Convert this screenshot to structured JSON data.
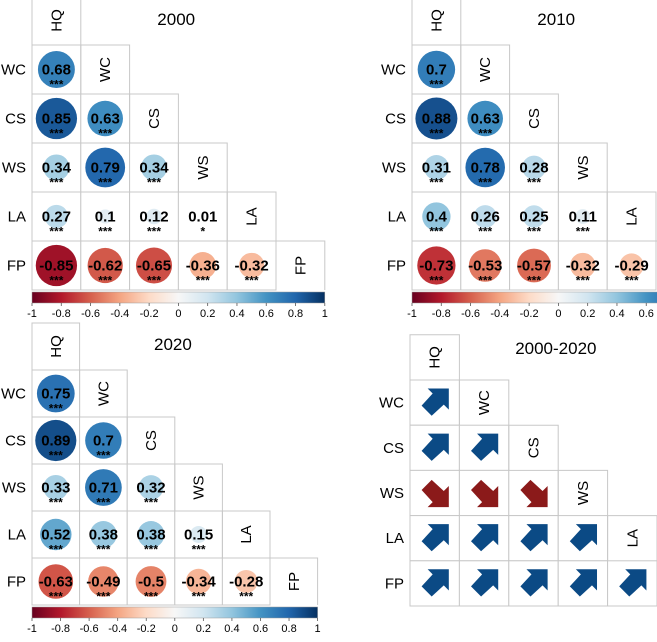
{
  "variables": [
    "HQ",
    "WC",
    "CS",
    "WS",
    "LA",
    "FP"
  ],
  "colorbar_ticks": [
    "-1",
    "-0.8",
    "-0.6",
    "-0.4",
    "-0.2",
    "0",
    "0.2",
    "0.4",
    "0.6",
    "0.8",
    "1"
  ],
  "colors": {
    "negative": "#67001f",
    "neutral": "#f7f7f7",
    "positive": "#053061",
    "arrow_up": "#0b4a85",
    "arrow_down": "#8b1a1a",
    "grid": "#c8c8c8"
  },
  "chart_data": [
    {
      "type": "heatmap",
      "title": "2000",
      "variables": [
        "HQ",
        "WC",
        "CS",
        "WS",
        "LA",
        "FP"
      ],
      "matrix": [
        {
          "row": "WC",
          "values": [
            0.68
          ],
          "labels": [
            "0.68"
          ],
          "sig": [
            "***"
          ]
        },
        {
          "row": "CS",
          "values": [
            0.85,
            0.63
          ],
          "labels": [
            "0.85",
            "0.63"
          ],
          "sig": [
            "***",
            "***"
          ]
        },
        {
          "row": "WS",
          "values": [
            0.34,
            0.79,
            0.34
          ],
          "labels": [
            "0.34",
            "0.79",
            "0.34"
          ],
          "sig": [
            "***",
            "***",
            "***"
          ]
        },
        {
          "row": "LA",
          "values": [
            0.27,
            0.1,
            0.12,
            0.01
          ],
          "labels": [
            "0.27",
            "0.1",
            "0.12",
            "0.01"
          ],
          "sig": [
            "***",
            "***",
            "***",
            "*"
          ]
        },
        {
          "row": "FP",
          "values": [
            -0.85,
            -0.62,
            -0.65,
            -0.36,
            -0.32
          ],
          "labels": [
            "-0.85",
            "-0.62",
            "-0.65",
            "-0.36",
            "-0.32"
          ],
          "sig": [
            "***",
            "***",
            "***",
            "***",
            "***"
          ]
        }
      ],
      "colorbar": {
        "min": -1,
        "max": 1
      }
    },
    {
      "type": "heatmap",
      "title": "2010",
      "variables": [
        "HQ",
        "WC",
        "CS",
        "WS",
        "LA",
        "FP"
      ],
      "matrix": [
        {
          "row": "WC",
          "values": [
            0.7
          ],
          "labels": [
            "0.7"
          ],
          "sig": [
            "***"
          ]
        },
        {
          "row": "CS",
          "values": [
            0.88,
            0.63
          ],
          "labels": [
            "0.88",
            "0.63"
          ],
          "sig": [
            "***",
            "***"
          ]
        },
        {
          "row": "WS",
          "values": [
            0.31,
            0.78,
            0.28
          ],
          "labels": [
            "0.31",
            "0.78",
            "0.28"
          ],
          "sig": [
            "***",
            "***",
            "***"
          ]
        },
        {
          "row": "LA",
          "values": [
            0.4,
            0.26,
            0.25,
            0.11
          ],
          "labels": [
            "0.4",
            "0.26",
            "0.25",
            "0.11"
          ],
          "sig": [
            "***",
            "***",
            "***",
            "***"
          ]
        },
        {
          "row": "FP",
          "values": [
            -0.73,
            -0.53,
            -0.57,
            -0.32,
            -0.29
          ],
          "labels": [
            "-0.73",
            "-0.53",
            "-0.57",
            "-0.32",
            "-0.29"
          ],
          "sig": [
            "***",
            "***",
            "***",
            "***",
            "***"
          ]
        }
      ],
      "colorbar": {
        "min": -1,
        "max": 1
      }
    },
    {
      "type": "heatmap",
      "title": "2020",
      "variables": [
        "HQ",
        "WC",
        "CS",
        "WS",
        "LA",
        "FP"
      ],
      "matrix": [
        {
          "row": "WC",
          "values": [
            0.75
          ],
          "labels": [
            "0.75"
          ],
          "sig": [
            "***"
          ]
        },
        {
          "row": "CS",
          "values": [
            0.89,
            0.7
          ],
          "labels": [
            "0.89",
            "0.7"
          ],
          "sig": [
            "***",
            "***"
          ]
        },
        {
          "row": "WS",
          "values": [
            0.33,
            0.71,
            0.32
          ],
          "labels": [
            "0.33",
            "0.71",
            "0.32"
          ],
          "sig": [
            "***",
            "***",
            "***"
          ]
        },
        {
          "row": "LA",
          "values": [
            0.52,
            0.38,
            0.38,
            0.15
          ],
          "labels": [
            "0.52",
            "0.38",
            "0.38",
            "0.15"
          ],
          "sig": [
            "***",
            "***",
            "***",
            "***"
          ]
        },
        {
          "row": "FP",
          "values": [
            -0.63,
            -0.49,
            -0.5,
            -0.34,
            -0.28
          ],
          "labels": [
            "-0.63",
            "-0.49",
            "-0.5",
            "-0.34",
            "-0.28"
          ],
          "sig": [
            "***",
            "***",
            "***",
            "***",
            "***"
          ]
        }
      ],
      "colorbar": {
        "min": -1,
        "max": 1
      }
    },
    {
      "type": "heatmap",
      "title": "2000-2020",
      "variables": [
        "HQ",
        "WC",
        "CS",
        "WS",
        "LA",
        "FP"
      ],
      "encoding": "arrow direction of change",
      "matrix": [
        {
          "row": "WC",
          "trend": [
            "up"
          ]
        },
        {
          "row": "CS",
          "trend": [
            "up",
            "up"
          ]
        },
        {
          "row": "WS",
          "trend": [
            "down",
            "down",
            "down"
          ]
        },
        {
          "row": "LA",
          "trend": [
            "up",
            "up",
            "up",
            "up"
          ]
        },
        {
          "row": "FP",
          "trend": [
            "up",
            "up",
            "up",
            "up",
            "up"
          ]
        }
      ]
    }
  ]
}
